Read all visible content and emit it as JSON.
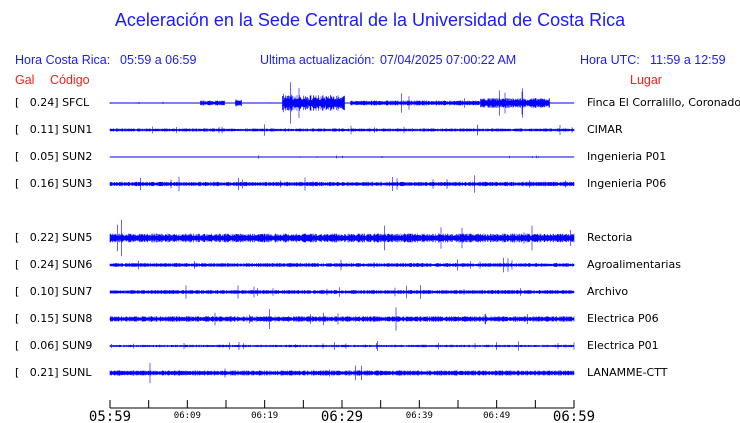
{
  "title": "Aceleración en la Sede Central de la Universidad de Costa Rica",
  "header": {
    "local_label": "Hora Costa Rica:",
    "local_range": "05:59 a 06:59",
    "update_label": "Ultima actualización:",
    "update_value": "07/04/2025 07:00:22 AM",
    "utc_label": "Hora UTC:",
    "utc_range": "11:59 a 12:59"
  },
  "columns": {
    "gal": "Gal",
    "code": "Código",
    "place": "Lugar"
  },
  "colors": {
    "trace": "#0000ff",
    "header": "#1a1aff",
    "columns": "#ff1a1a"
  },
  "chart_data": {
    "type": "line",
    "xlabel": "",
    "ylabel": "",
    "x_ticks_major": [
      "05:59",
      "06:29",
      "06:59"
    ],
    "x_ticks_minor": [
      "06:09",
      "06:19",
      "06:39",
      "06:49"
    ],
    "stations": [
      {
        "gal": "0.24",
        "code": "SFCL",
        "place": "Finca El Corralillo, Coronado"
      },
      {
        "gal": "0.11",
        "code": "SUN1",
        "place": "CIMAR"
      },
      {
        "gal": "0.05",
        "code": "SUN2",
        "place": "Ingenieria P01"
      },
      {
        "gal": "0.16",
        "code": "SUN3",
        "place": "Ingenieria P06"
      },
      {
        "gal": "0.22",
        "code": "SUN5",
        "place": "Rectoria"
      },
      {
        "gal": "0.24",
        "code": "SUN6",
        "place": "Agroalimentarias"
      },
      {
        "gal": "0.10",
        "code": "SUN7",
        "place": "Archivo"
      },
      {
        "gal": "0.15",
        "code": "SUN8",
        "place": "Electrica P06"
      },
      {
        "gal": "0.06",
        "code": "SUN9",
        "place": "Electrica P01"
      },
      {
        "gal": "0.21",
        "code": "SUNL",
        "place": "LANAMME-CTT"
      }
    ]
  }
}
